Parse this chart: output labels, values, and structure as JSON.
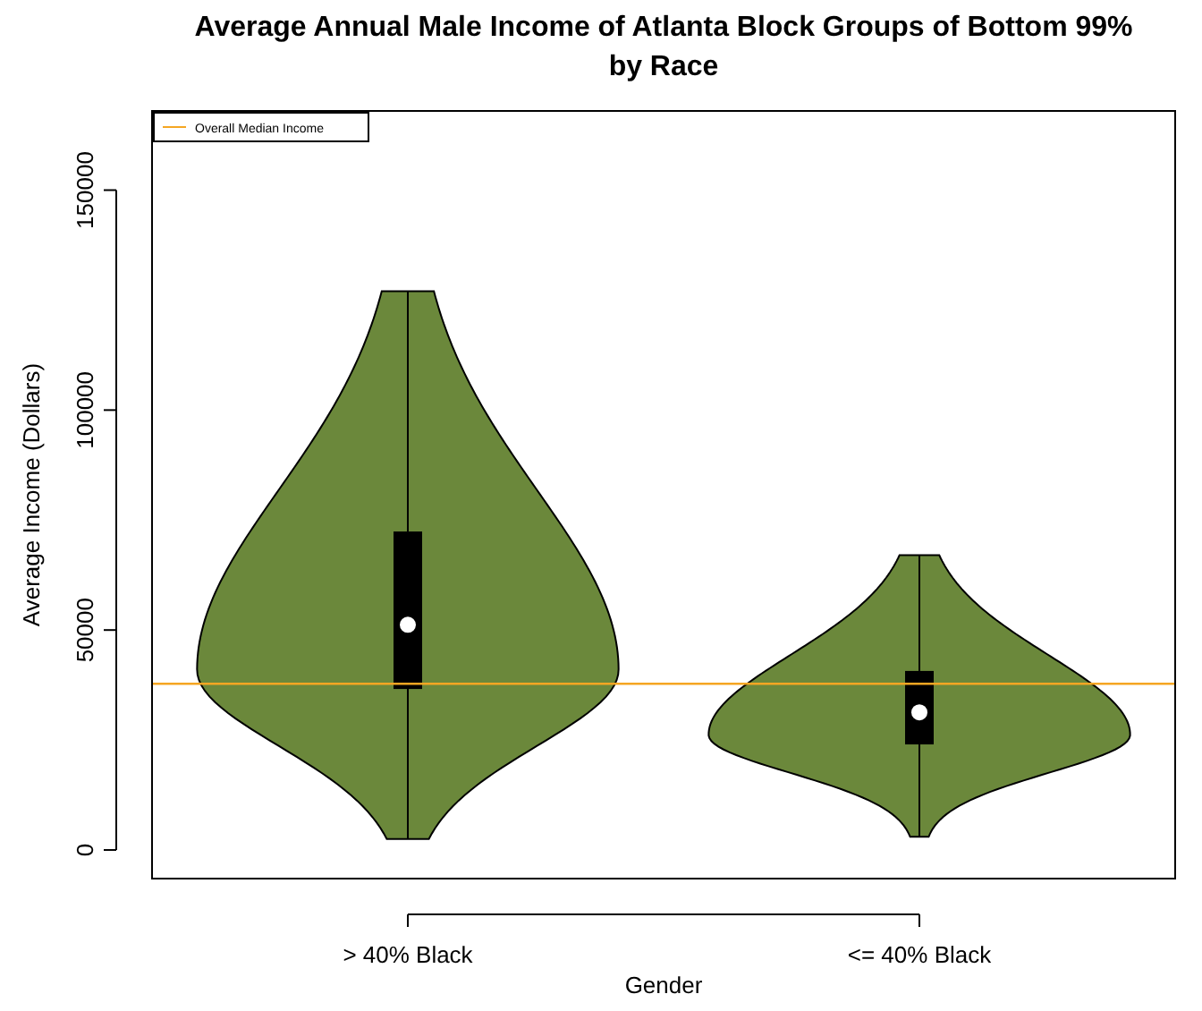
{
  "chart_data": {
    "type": "box",
    "title": "Average Annual Male Income of Atlanta Block Groups of Bottom 99% by Race",
    "xlabel": "Gender",
    "ylabel": "Average Income (Dollars)",
    "categories": [
      "> 40% Black",
      "<= 40% Black"
    ],
    "color": "#000000",
    "boxes": [
      {
        "low": 2500,
        "q1": 36600,
        "median": 51200,
        "q3": 72400,
        "high": 127000
      },
      {
        "low": 3000,
        "q1": 24000,
        "median": 31300,
        "q3": 40700,
        "high": 67000
      }
    ],
    "ylim": [
      -6500,
      168000
    ],
    "yticks": [
      0,
      50000,
      100000,
      150000
    ],
    "ref_lines": [
      {
        "axis": "y",
        "value": 37800,
        "label": "Overall Median Income",
        "color": "#f5a623"
      }
    ],
    "legend": "top left",
    "grid": false
  }
}
